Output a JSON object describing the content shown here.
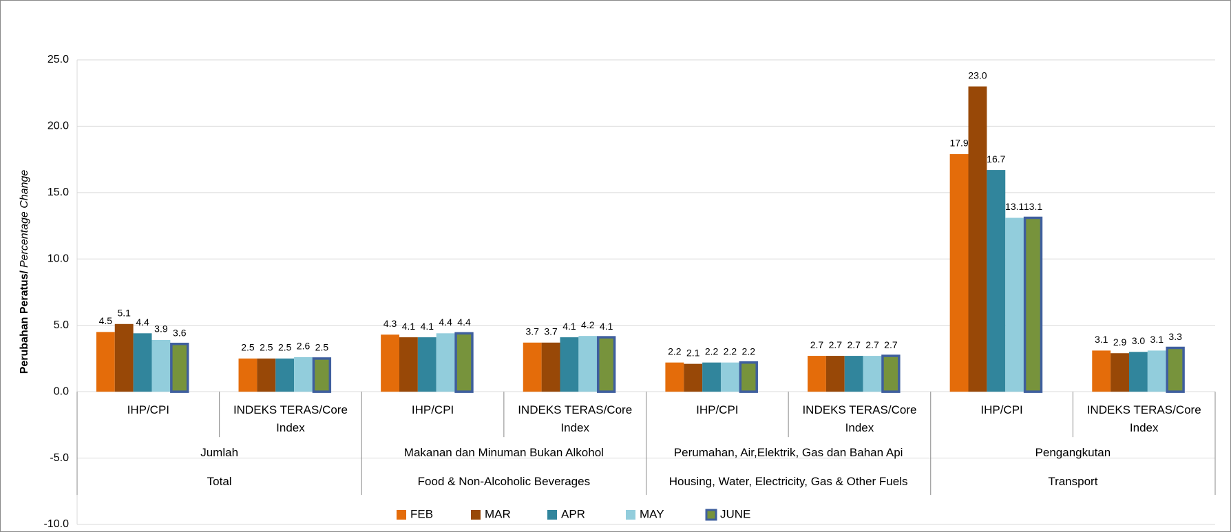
{
  "chart_data": {
    "type": "bar",
    "ylabel": "Perubahan Peratus/",
    "ylabel_en": "Percentage Change",
    "categories": [
      "IHP/CPI",
      "INDEKS TERAS/Core Index",
      "IHP/CPI",
      "INDEKS TERAS/Core Index",
      "IHP/CPI",
      "INDEKS TERAS/Core Index",
      "IHP/CPI",
      "INDEKS TERAS/Core Index"
    ],
    "groups": [
      [
        "Jumlah",
        "Total"
      ],
      [
        "Makanan dan Minuman Bukan Alkohol",
        "Food & Non-Alcoholic Beverages"
      ],
      [
        "Perumahan, Air,Elektrik, Gas dan Bahan Api",
        "Housing, Water, Electricity, Gas & Other Fuels"
      ],
      [
        "Pengangkutan",
        "Transport"
      ]
    ],
    "series": [
      {
        "name": "FEB",
        "color": "#e46c0a",
        "values": [
          4.5,
          2.5,
          4.3,
          3.7,
          2.2,
          2.7,
          17.9,
          3.1
        ],
        "value_labels": [
          "4.5",
          "2.5",
          "4.3",
          "3.7",
          "2.2",
          "2.7",
          "17.9",
          "3.1"
        ]
      },
      {
        "name": "MAR",
        "color": "#984807",
        "values": [
          5.1,
          2.5,
          4.1,
          3.7,
          2.1,
          2.7,
          23.0,
          2.9
        ],
        "value_labels": [
          "5.1",
          "2.5",
          "4.1",
          "3.7",
          "2.1",
          "2.7",
          "23.0",
          "2.9"
        ]
      },
      {
        "name": "APR",
        "color": "#31859c",
        "values": [
          4.4,
          2.5,
          4.1,
          4.1,
          2.2,
          2.7,
          16.7,
          3.0
        ],
        "value_labels": [
          "4.4",
          "2.5",
          "4.1",
          "4.1",
          "2.2",
          "2.7",
          "16.7",
          "3.0"
        ]
      },
      {
        "name": "MAY",
        "color": "#92cddc",
        "values": [
          3.9,
          2.6,
          4.4,
          4.2,
          2.2,
          2.7,
          13.1,
          3.1
        ],
        "value_labels": [
          "3.9",
          "2.6",
          "4.4",
          "4.2",
          "2.2",
          "2.7",
          "13.1",
          "3.1"
        ]
      },
      {
        "name": "JUNE",
        "color": "#77933c",
        "border": "#3f5f9e",
        "values": [
          3.6,
          2.5,
          4.4,
          4.1,
          2.2,
          2.7,
          13.1,
          3.3
        ],
        "value_labels": [
          "3.6",
          "2.5",
          "4.4",
          "4.1",
          "2.2",
          "2.7",
          "13.1",
          "3.3"
        ]
      }
    ],
    "ylim": [
      -10,
      25
    ],
    "yticks": [
      {
        "value": -10,
        "label": "-10.0"
      },
      {
        "value": -5,
        "label": "-5.0"
      },
      {
        "value": 0,
        "label": "0.0"
      },
      {
        "value": 5,
        "label": "5.0"
      },
      {
        "value": 10,
        "label": "10.0"
      },
      {
        "value": 15,
        "label": "15.0"
      },
      {
        "value": 20,
        "label": "20.0"
      },
      {
        "value": 25,
        "label": "25.0"
      }
    ],
    "grid": true,
    "legend": "bottom"
  }
}
